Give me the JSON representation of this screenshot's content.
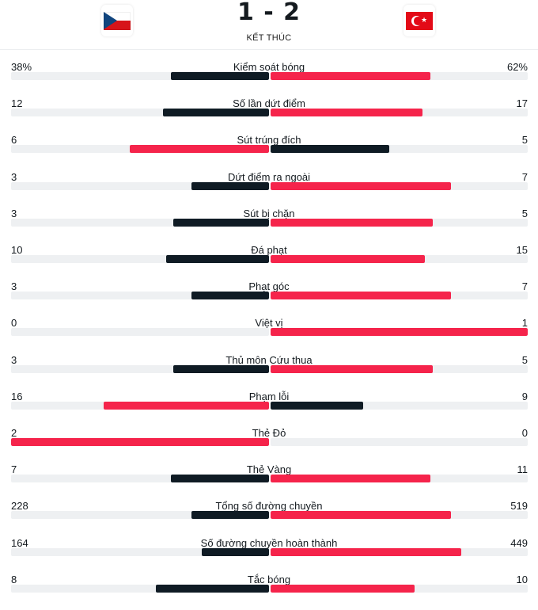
{
  "match": {
    "score": "1 - 2",
    "status": "KẾT THÚC",
    "home_flag_icon": "czech-flag-icon",
    "away_flag_icon": "turkey-flag-icon"
  },
  "colors": {
    "dark": "#0f1b24",
    "red": "#f5244b",
    "track": "#eef0f2"
  },
  "stats": [
    {
      "label": "Kiểm soát bóng",
      "home": "38%",
      "away": "62%",
      "home_frac": 0.38,
      "away_frac": 0.62,
      "leader": "away"
    },
    {
      "label": "Số lần dứt điểm",
      "home": "12",
      "away": "17",
      "home_frac": 0.41,
      "away_frac": 0.59,
      "leader": "away"
    },
    {
      "label": "Sút trúng đích",
      "home": "6",
      "away": "5",
      "home_frac": 0.54,
      "away_frac": 0.46,
      "leader": "home"
    },
    {
      "label": "Dứt điểm ra ngoài",
      "home": "3",
      "away": "7",
      "home_frac": 0.3,
      "away_frac": 0.7,
      "leader": "away"
    },
    {
      "label": "Sút bị chặn",
      "home": "3",
      "away": "5",
      "home_frac": 0.37,
      "away_frac": 0.63,
      "leader": "away"
    },
    {
      "label": "Đá phạt",
      "home": "10",
      "away": "15",
      "home_frac": 0.4,
      "away_frac": 0.6,
      "leader": "away"
    },
    {
      "label": "Phạt góc",
      "home": "3",
      "away": "7",
      "home_frac": 0.3,
      "away_frac": 0.7,
      "leader": "away"
    },
    {
      "label": "Việt vị",
      "home": "0",
      "away": "1",
      "home_frac": 0.0,
      "away_frac": 1.0,
      "leader": "away"
    },
    {
      "label": "Thủ môn Cứu thua",
      "home": "3",
      "away": "5",
      "home_frac": 0.37,
      "away_frac": 0.63,
      "leader": "away"
    },
    {
      "label": "Phạm lỗi",
      "home": "16",
      "away": "9",
      "home_frac": 0.64,
      "away_frac": 0.36,
      "leader": "home"
    },
    {
      "label": "Thẻ Đỏ",
      "home": "2",
      "away": "0",
      "home_frac": 1.0,
      "away_frac": 0.0,
      "leader": "home"
    },
    {
      "label": "Thẻ Vàng",
      "home": "7",
      "away": "11",
      "home_frac": 0.38,
      "away_frac": 0.62,
      "leader": "away"
    },
    {
      "label": "Tổng số đường chuyền",
      "home": "228",
      "away": "519",
      "home_frac": 0.3,
      "away_frac": 0.7,
      "leader": "away"
    },
    {
      "label": "Số đường chuyền hoàn thành",
      "home": "164",
      "away": "449",
      "home_frac": 0.26,
      "away_frac": 0.74,
      "leader": "away"
    },
    {
      "label": "Tắc bóng",
      "home": "8",
      "away": "10",
      "home_frac": 0.44,
      "away_frac": 0.56,
      "leader": "away"
    }
  ]
}
